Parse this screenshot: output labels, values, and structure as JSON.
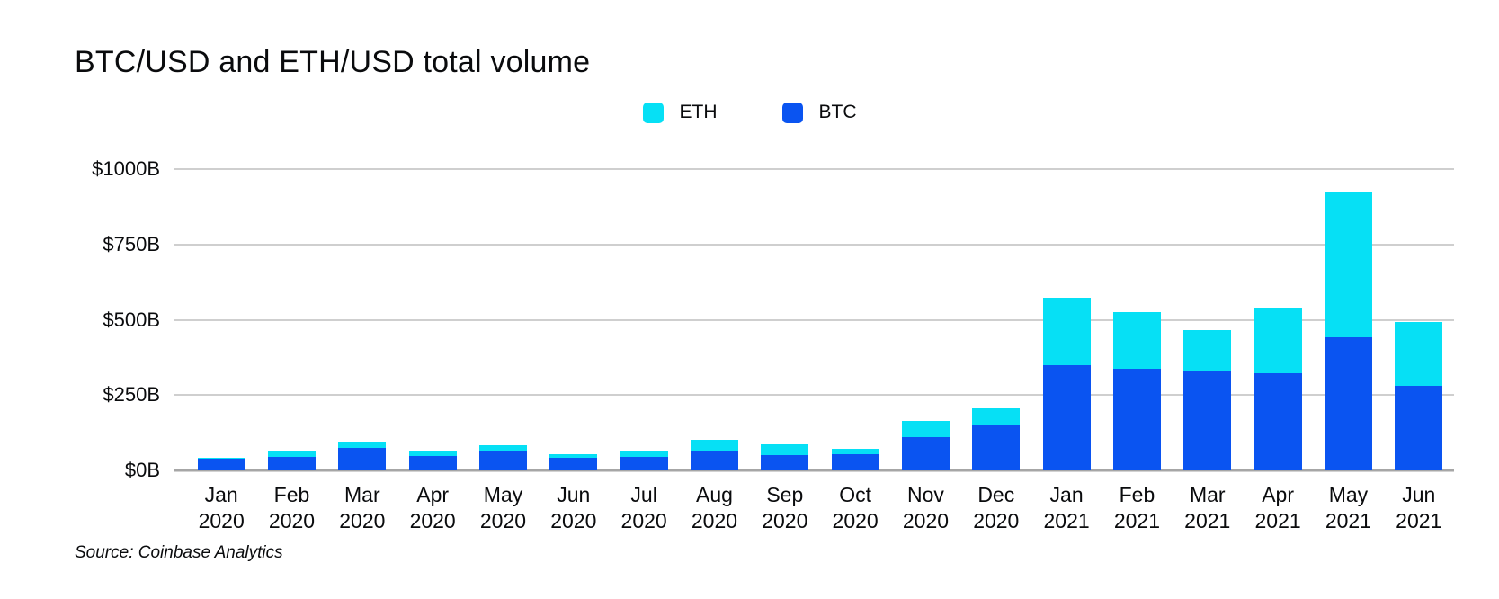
{
  "title": "BTC/USD and ETH/USD total volume",
  "legend": [
    {
      "label": "ETH",
      "color": "#06e0f5"
    },
    {
      "label": "BTC",
      "color": "#0a54f1"
    }
  ],
  "source": "Source: Coinbase Analytics",
  "colors": {
    "eth": "#06e0f5",
    "btc": "#0a54f1",
    "gridline": "#cfcfcf",
    "baseline": "#a6a6a6",
    "text": "#0a0b0d"
  },
  "chart_data": {
    "type": "bar",
    "stacked": true,
    "title": "BTC/USD and ETH/USD total volume",
    "categories": [
      "Jan 2020",
      "Feb 2020",
      "Mar 2020",
      "Apr 2020",
      "May 2020",
      "Jun 2020",
      "Jul 2020",
      "Aug 2020",
      "Sep 2020",
      "Oct 2020",
      "Nov 2020",
      "Dec 2020",
      "Jan 2021",
      "Feb 2021",
      "Mar 2021",
      "Apr 2021",
      "May 2021",
      "Jun 2021"
    ],
    "series": [
      {
        "name": "BTC",
        "color": "#0a54f1",
        "values": [
          40,
          46,
          75,
          49,
          64,
          42,
          45,
          63,
          52,
          54,
          110,
          150,
          350,
          338,
          330,
          323,
          441,
          282
        ]
      },
      {
        "name": "ETH",
        "color": "#06e0f5",
        "values": [
          3,
          17,
          20,
          18,
          21,
          12,
          17,
          38,
          35,
          18,
          53,
          57,
          223,
          187,
          135,
          214,
          483,
          211
        ]
      }
    ],
    "totals": [
      43,
      63,
      95,
      67,
      85,
      54,
      62,
      101,
      87,
      72,
      163,
      207,
      573,
      525,
      465,
      537,
      924,
      493
    ],
    "units": "billions USD",
    "xlabel": "",
    "ylabel": "",
    "ylim": [
      0,
      1000
    ],
    "yticks": [
      0,
      250,
      500,
      750,
      1000
    ],
    "ytick_labels": [
      "$0B",
      "$250B",
      "$500B",
      "$750B",
      "$1000B"
    ],
    "grid": true,
    "legend_position": "top"
  }
}
